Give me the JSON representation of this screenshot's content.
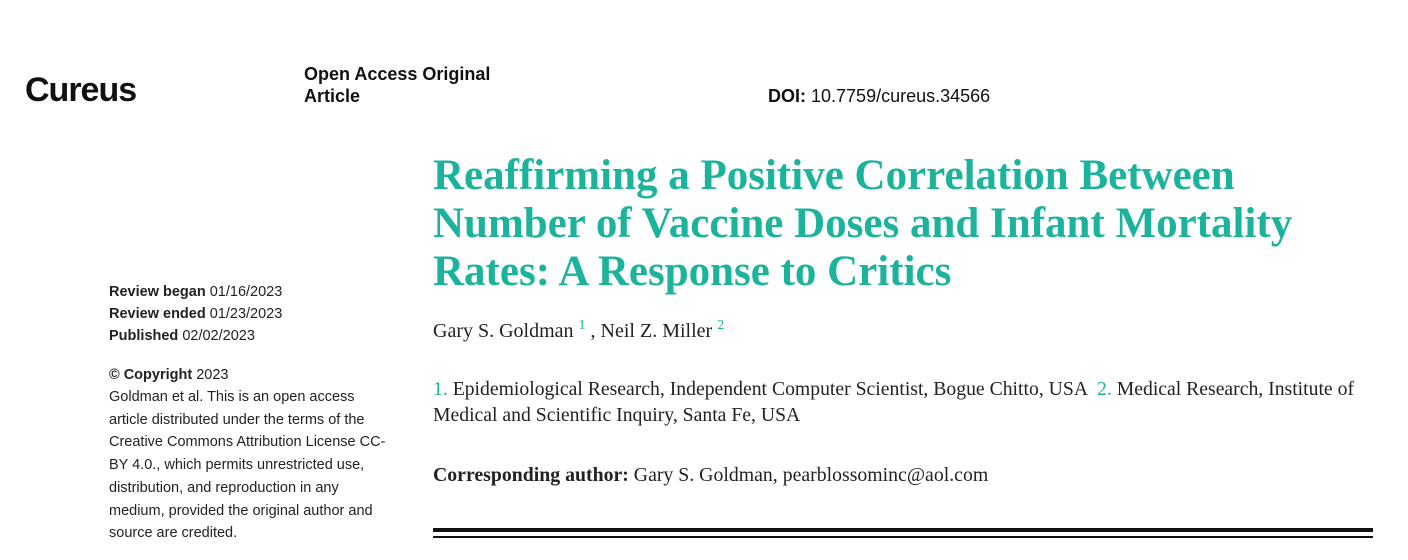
{
  "header": {
    "logo_text": "Cureus",
    "article_type": "Open Access Original Article",
    "doi_label": "DOI:",
    "doi_value": "10.7759/cureus.34566"
  },
  "sidebar": {
    "review_began_label": "Review began",
    "review_began_date": "01/16/2023",
    "review_ended_label": "Review ended",
    "review_ended_date": "01/23/2023",
    "published_label": "Published",
    "published_date": "02/02/2023",
    "copyright_label": "© Copyright",
    "copyright_year": "2023",
    "license_text": "Goldman et al. This is an open access article distributed under the terms of the Creative Commons Attribution License CC-BY 4.0., which permits unrestricted use, distribution, and reproduction in any medium, provided the original author and source are credited."
  },
  "article": {
    "title": "Reaffirming a Positive Correlation Between Number of Vaccine Doses and Infant Mortality Rates: A Response to Critics",
    "authors": [
      {
        "name": "Gary S. Goldman",
        "affiliation": "1"
      },
      {
        "name": "Neil Z. Miller",
        "affiliation": "2"
      }
    ],
    "author_separator": ",",
    "affiliations": [
      {
        "number": "1.",
        "text": "Epidemiological Research, Independent Computer Scientist, Bogue Chitto, USA"
      },
      {
        "number": "2.",
        "text": "Medical Research, Institute of Medical and Scientific Inquiry, Santa Fe, USA"
      }
    ],
    "corresponding_label": "Corresponding author:",
    "corresponding_name": "Gary S. Goldman,",
    "corresponding_email": "pearblossominc@aol.com"
  },
  "colors": {
    "accent": "#1bb39b",
    "text": "#222222"
  }
}
